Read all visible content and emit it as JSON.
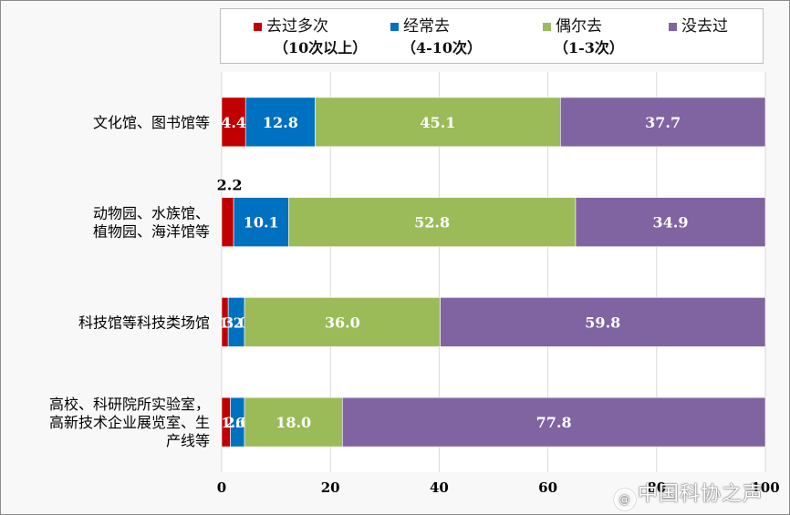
{
  "chart_data": {
    "type": "bar",
    "orientation": "horizontal",
    "stacked": true,
    "categories": [
      [
        "文化馆、图书馆等"
      ],
      [
        "动物园、水族馆、",
        "植物园、海洋馆等"
      ],
      [
        "科技馆等科技类场馆"
      ],
      [
        "高校、科研院所实验室，",
        "高新技术企业展览室、生",
        "产线等"
      ]
    ],
    "series": [
      {
        "name": "去过多次",
        "sub": "（10次以上）",
        "color": "#c00000",
        "values": [
          4.4,
          2.2,
          1.2,
          1.6
        ],
        "labels": [
          "4.4",
          "2.2",
          "",
          ""
        ]
      },
      {
        "name": "经常去",
        "sub": "（4-10次）",
        "color": "#0070c0",
        "values": [
          12.8,
          10.1,
          3.0,
          2.6
        ],
        "labels": [
          "12.8",
          "10.1",
          "3.0",
          "2.6"
        ]
      },
      {
        "name": "偶尔去",
        "sub": "（1-3次）",
        "color": "#9bbb59",
        "values": [
          45.1,
          52.8,
          36.0,
          18.0
        ],
        "labels": [
          "45.1",
          "52.8",
          "36.0",
          "18.0"
        ]
      },
      {
        "name": "没去过",
        "sub": "",
        "color": "#8064a2",
        "values": [
          37.7,
          34.9,
          59.8,
          77.8
        ],
        "labels": [
          "37.7",
          "34.9",
          "59.8",
          "77.8"
        ]
      }
    ],
    "small_labels": [
      "1.2",
      "1.6"
    ],
    "xlim": [
      0,
      100
    ],
    "xticks": [
      "0",
      "20",
      "40",
      "60",
      "80",
      "100"
    ],
    "grid": true,
    "legend_position": "top"
  },
  "watermark": {
    "text": "中国科协之声",
    "icon": "at-icon"
  }
}
